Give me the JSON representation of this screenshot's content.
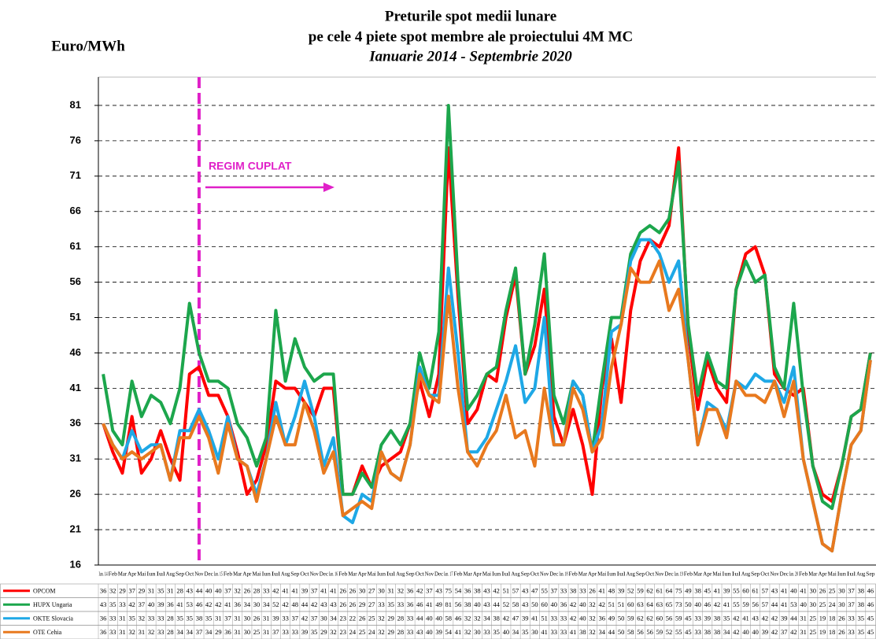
{
  "chart_data": {
    "type": "line",
    "title": [
      "Preturile spot medii lunare",
      "pe cele 4 piete spot membre ale proiectului 4M MC"
    ],
    "subtitle": "Ianuarie 2014 - Septembrie 2020",
    "y_label": "Euro/MWh",
    "annotation": "REGIM CUPLAT",
    "categories": [
      "Ian. 14",
      "Feb",
      "Mar",
      "Apr",
      "Mai",
      "Iun",
      "Iul",
      "Aug",
      "Sep",
      "Oct",
      "Nov",
      "Dec",
      "Ian. 15",
      "Feb",
      "Mar",
      "Apr",
      "Mai",
      "Iun",
      "Iul",
      "Aug",
      "Sep",
      "Oct",
      "Nov",
      "Dec",
      "Ian. 16",
      "Feb",
      "Mar",
      "Apr",
      "Mai",
      "Iun",
      "Iul",
      "Aug",
      "Sep",
      "Oct",
      "Nov",
      "Dec",
      "Ian. 17",
      "Feb",
      "Mar",
      "Apr",
      "Mai",
      "Iun",
      "Iul",
      "Aug",
      "Sep",
      "Oct",
      "Nov",
      "Dec",
      "Ian. 18",
      "Feb",
      "Mar",
      "Apr",
      "Mai",
      "Iun",
      "Iul",
      "Aug",
      "Sep",
      "Oct",
      "Nov",
      "Dec",
      "Ian. 19",
      "Feb",
      "Mar",
      "Apr",
      "Mai",
      "Iun",
      "Iul",
      "Aug",
      "Sep",
      "Oct",
      "Nov",
      "Dec",
      "Ian. 20",
      "Feb",
      "Mar",
      "Apr",
      "Mai",
      "Iun",
      "Iul",
      "Aug",
      "Sep"
    ],
    "series": [
      {
        "name": "OPCOM",
        "color": "#ff0000",
        "values": [
          36,
          32,
          29,
          37,
          29,
          31,
          35,
          31,
          28,
          43,
          44,
          40,
          40,
          37,
          32,
          26,
          28,
          33,
          42,
          41,
          41,
          39,
          37,
          41,
          41,
          26,
          26,
          30,
          27,
          30,
          31,
          32,
          36,
          42,
          37,
          43,
          75,
          54,
          36,
          38,
          43,
          42,
          51,
          57,
          43,
          47,
          55,
          37,
          33,
          38,
          33,
          26,
          41,
          48,
          39,
          52,
          59,
          62,
          61,
          64,
          75,
          49,
          38,
          45,
          41,
          39,
          55,
          60,
          61,
          57,
          43,
          41,
          40,
          41,
          30,
          26,
          25,
          30,
          37,
          38,
          46
        ]
      },
      {
        "name": "HUPX  Ungaria",
        "color": "#1ca64c",
        "values": [
          43,
          35,
          33,
          42,
          37,
          40,
          39,
          36,
          41,
          53,
          46,
          42,
          42,
          41,
          36,
          34,
          30,
          34,
          52,
          42,
          48,
          44,
          42,
          43,
          43,
          26,
          26,
          29,
          27,
          33,
          35,
          33,
          36,
          46,
          41,
          49,
          81,
          56,
          38,
          40,
          43,
          44,
          52,
          58,
          43,
          50,
          60,
          40,
          36,
          42,
          40,
          32,
          42,
          51,
          51,
          60,
          63,
          64,
          63,
          65,
          73,
          50,
          40,
          46,
          42,
          41,
          55,
          59,
          56,
          57,
          44,
          41,
          53,
          40,
          30,
          25,
          24,
          30,
          37,
          38,
          46
        ]
      },
      {
        "name": "OKTE Slovacia",
        "color": "#1ea8e6",
        "values": [
          36,
          33,
          31,
          35,
          32,
          33,
          33,
          28,
          35,
          35,
          38,
          35,
          31,
          37,
          31,
          30,
          26,
          31,
          39,
          33,
          37,
          42,
          37,
          30,
          34,
          23,
          22,
          26,
          25,
          32,
          29,
          28,
          33,
          44,
          40,
          40,
          58,
          46,
          32,
          32,
          34,
          38,
          42,
          47,
          39,
          41,
          51,
          33,
          33,
          42,
          40,
          32,
          36,
          49,
          50,
          59,
          62,
          62,
          60,
          56,
          59,
          45,
          33,
          39,
          38,
          35,
          42,
          41,
          43,
          42,
          42,
          39,
          44,
          31,
          25,
          19,
          18,
          26,
          33,
          35,
          45
        ]
      },
      {
        "name": "OTE Cehia",
        "color": "#e8791e",
        "values": [
          36,
          33,
          31,
          32,
          31,
          32,
          33,
          28,
          34,
          34,
          37,
          34,
          29,
          36,
          31,
          30,
          25,
          31,
          37,
          33,
          33,
          39,
          35,
          29,
          32,
          23,
          24,
          25,
          24,
          32,
          29,
          28,
          33,
          43,
          40,
          39,
          54,
          41,
          32,
          30,
          33,
          35,
          40,
          34,
          35,
          30,
          41,
          33,
          33,
          41,
          38,
          32,
          34,
          44,
          50,
          58,
          56,
          56,
          59,
          52,
          55,
          45,
          33,
          38,
          38,
          34,
          42,
          40,
          40,
          39,
          42,
          37,
          42,
          31,
          25,
          19,
          18,
          26,
          33,
          35,
          45
        ]
      }
    ],
    "ylim": [
      16,
      85
    ],
    "yticks": [
      16,
      21,
      26,
      31,
      36,
      41,
      46,
      51,
      56,
      61,
      66,
      71,
      76,
      81
    ],
    "grid": true
  }
}
